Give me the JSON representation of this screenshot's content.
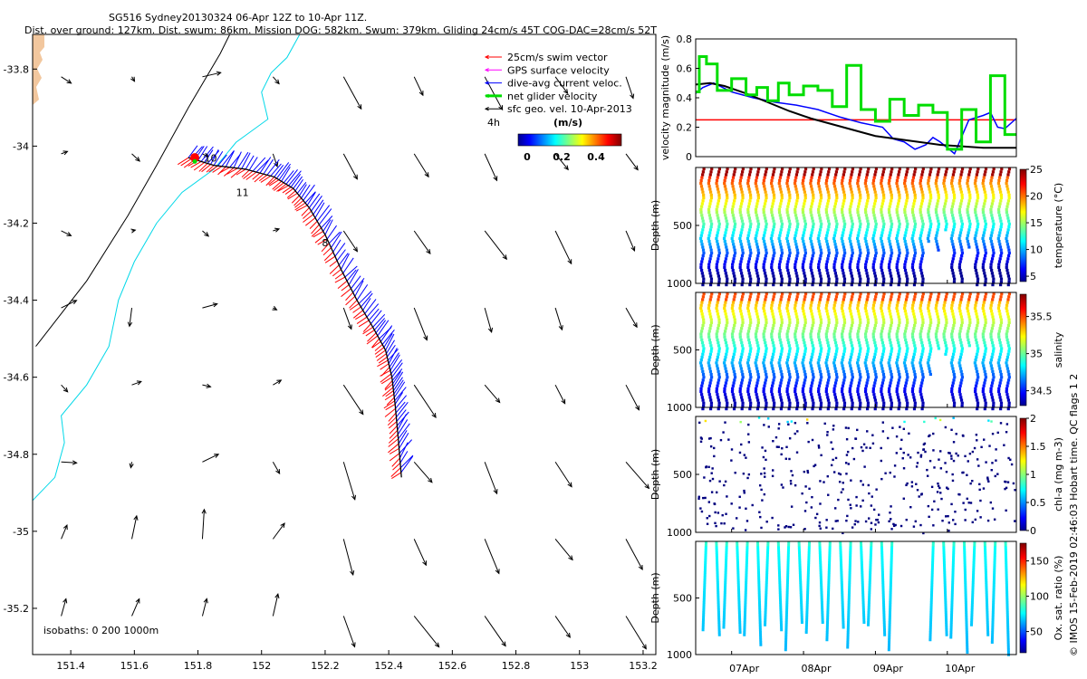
{
  "header": {
    "title": "SG516 Sydney20130324 06-Apr 12Z to 10-Apr 11Z.",
    "subtitle": "Dist. over ground: 127km. Dist. swum: 86km. Mission DOG: 582km. Swum: 379km. Gliding 24cm/s 45T COG-DAC=28cm/s 52T"
  },
  "colors": {
    "swim": "#ff0000",
    "gps": "#ff00ff",
    "dac": "#0000ff",
    "net": "#00dd00",
    "sfc": "#000000",
    "coast": "#00d8e8",
    "isobath": "#000000",
    "land": "#f2c79e"
  },
  "chart_data": [
    {
      "type": "scatter",
      "name": "map",
      "xticks": [
        "151.4",
        "151.6",
        "151.8",
        "152",
        "152.2",
        "152.4",
        "152.6",
        "152.8",
        "153",
        "153.2"
      ],
      "yticks": [
        "-33.8",
        "-34",
        "-34.2",
        "-34.4",
        "-34.6",
        "-34.8",
        "-35",
        "-35.2"
      ],
      "xlim": [
        151.28,
        153.24
      ],
      "ylim": [
        -35.32,
        -33.71
      ],
      "legend": {
        "entries": [
          {
            "label": "25cm/s swim vector",
            "color": "#ff0000"
          },
          {
            "label": "GPS surface velocity",
            "color": "#ff00ff"
          },
          {
            "label": "dive-avg current veloc.",
            "color": "#0000ff"
          },
          {
            "label": "net glider velocity",
            "color": "#00dd00"
          },
          {
            "label": "sfc geo. vel. 10-Apr-2013",
            "color": "#000000"
          }
        ],
        "time_step": "4h",
        "units": "(m/s)",
        "colorbar_ticks": [
          "0",
          "0.2",
          "0.4"
        ],
        "placement": "top-right"
      },
      "day_labels": [
        {
          "label": "10",
          "lon": 151.82,
          "lat": -34.04
        },
        {
          "label": "11",
          "lon": 151.92,
          "lat": -34.13
        },
        {
          "label": "8",
          "lon": 152.19,
          "lat": -34.26
        }
      ],
      "isobaths_label": "isobaths: 0   200  1000m",
      "track": [
        [
          151.77,
          -34.03
        ],
        [
          151.85,
          -34.05
        ],
        [
          151.95,
          -34.06
        ],
        [
          152.04,
          -34.08
        ],
        [
          152.1,
          -34.11
        ],
        [
          152.15,
          -34.16
        ],
        [
          152.2,
          -34.23
        ],
        [
          152.25,
          -34.32
        ],
        [
          152.3,
          -34.4
        ],
        [
          152.35,
          -34.47
        ],
        [
          152.39,
          -34.53
        ],
        [
          152.41,
          -34.6
        ],
        [
          152.42,
          -34.67
        ],
        [
          152.43,
          -34.76
        ],
        [
          152.44,
          -34.86
        ]
      ]
    },
    {
      "type": "line",
      "name": "velocity",
      "ylabel": "velocity magnitude (m/s)",
      "ylim": [
        0,
        0.8
      ],
      "yticks": [
        "0",
        "0.2",
        "0.4",
        "0.6",
        "0.8"
      ],
      "xlim": [
        6.5,
        10.96
      ],
      "swim_speed": 0.25,
      "series": [
        {
          "key": "dac",
          "color": "#0000ff",
          "x": [
            6.5,
            6.6,
            6.75,
            7,
            7.3,
            7.6,
            7.9,
            8.2,
            8.5,
            8.8,
            9.1,
            9.25,
            9.4,
            9.55,
            9.7,
            9.8,
            9.9,
            10.1,
            10.3,
            10.5,
            10.6,
            10.7,
            10.8,
            10.96
          ],
          "y": [
            0.43,
            0.47,
            0.5,
            0.44,
            0.4,
            0.37,
            0.35,
            0.32,
            0.27,
            0.23,
            0.2,
            0.12,
            0.1,
            0.05,
            0.08,
            0.13,
            0.1,
            0.02,
            0.25,
            0.28,
            0.3,
            0.2,
            0.19,
            0.26
          ]
        },
        {
          "key": "sfc",
          "color": "#000000",
          "x": [
            6.5,
            6.7,
            6.9,
            7.2,
            7.5,
            7.8,
            8.1,
            8.4,
            8.7,
            9,
            9.3,
            9.6,
            9.9,
            10.2,
            10.5,
            10.8,
            10.96
          ],
          "y": [
            0.49,
            0.5,
            0.48,
            0.43,
            0.37,
            0.31,
            0.26,
            0.22,
            0.18,
            0.14,
            0.12,
            0.1,
            0.08,
            0.07,
            0.06,
            0.06,
            0.06
          ]
        },
        {
          "key": "net",
          "color": "#00dd00",
          "x": [
            6.5,
            6.55,
            6.55,
            6.65,
            6.65,
            6.8,
            6.8,
            7,
            7,
            7.2,
            7.2,
            7.35,
            7.35,
            7.5,
            7.5,
            7.65,
            7.65,
            7.8,
            7.8,
            8,
            8,
            8.2,
            8.2,
            8.4,
            8.4,
            8.6,
            8.6,
            8.8,
            8.8,
            9,
            9,
            9.2,
            9.2,
            9.4,
            9.4,
            9.6,
            9.6,
            9.8,
            9.8,
            10,
            10,
            10.2,
            10.2,
            10.4,
            10.4,
            10.6,
            10.6,
            10.8,
            10.8,
            10.96
          ],
          "y": [
            0.44,
            0.44,
            0.68,
            0.68,
            0.63,
            0.63,
            0.45,
            0.45,
            0.53,
            0.53,
            0.42,
            0.42,
            0.47,
            0.47,
            0.38,
            0.38,
            0.5,
            0.5,
            0.42,
            0.42,
            0.48,
            0.48,
            0.45,
            0.45,
            0.34,
            0.34,
            0.62,
            0.62,
            0.32,
            0.32,
            0.24,
            0.24,
            0.39,
            0.39,
            0.28,
            0.28,
            0.35,
            0.35,
            0.3,
            0.3,
            0.05,
            0.05,
            0.32,
            0.32,
            0.1,
            0.1,
            0.55,
            0.55,
            0.15,
            0.15
          ]
        }
      ]
    },
    {
      "type": "scatter",
      "name": "temperature",
      "ylabel": "Depth (m)",
      "clabel": "temperature (°C)",
      "ylim": [
        1000,
        0
      ],
      "yticks": [
        "1000",
        "500"
      ],
      "cticks": [
        "25",
        "20",
        "15",
        "10",
        "5"
      ],
      "crange": [
        4,
        25
      ],
      "profiles": 40
    },
    {
      "type": "scatter",
      "name": "salinity",
      "ylabel": "Depth (m)",
      "clabel": "salinity",
      "ylim": [
        1000,
        0
      ],
      "yticks": [
        "1000",
        "500"
      ],
      "cticks": [
        "35.5",
        "35",
        "34.5"
      ],
      "crange": [
        34.3,
        35.8
      ],
      "profiles": 40
    },
    {
      "type": "scatter",
      "name": "chl",
      "ylabel": "Depth (m)",
      "clabel": "chl-a (mg m-3)",
      "ylim": [
        1000,
        0
      ],
      "yticks": [
        "1000",
        "500"
      ],
      "cticks": [
        "2",
        "1.5",
        "1",
        "0.5",
        "0"
      ],
      "crange": [
        0,
        2
      ]
    },
    {
      "type": "scatter",
      "name": "oxygen",
      "ylabel": "Depth (m)",
      "clabel": "Ox. sat. ratio (%)",
      "ylim": [
        1000,
        0
      ],
      "yticks": [
        "1000",
        "500"
      ],
      "cticks": [
        "150",
        "100",
        "50"
      ],
      "crange": [
        20,
        175
      ],
      "xticks": [
        "07Apr",
        "08Apr",
        "09Apr",
        "10Apr"
      ],
      "xlim": [
        6.5,
        10.96
      ],
      "xtick_values": [
        7,
        8,
        9,
        10
      ]
    }
  ],
  "footer": {
    "credit": "© IMOS 15-Feb-2019 02:46:03 Hobart time. QC flags 1  2"
  }
}
